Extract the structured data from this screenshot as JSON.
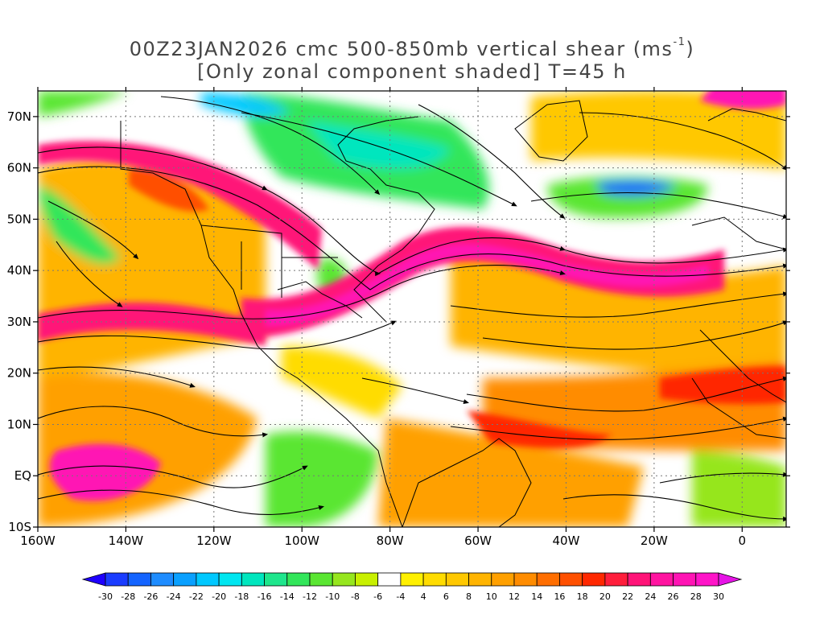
{
  "title": {
    "line1_prefix": "00Z23JAN2026 cmc 500-850mb vertical shear (ms",
    "line1_sup": "-1",
    "line1_suffix": ")",
    "line2": "[Only zonal component shaded] T=45 h"
  },
  "map": {
    "projection": "lat-lon",
    "lon_range": [
      -160,
      10
    ],
    "lat_range": [
      -10,
      75
    ],
    "x_ticks": [
      "160W",
      "140W",
      "120W",
      "100W",
      "80W",
      "60W",
      "40W",
      "20W",
      "0"
    ],
    "y_ticks": [
      "70N",
      "60N",
      "50N",
      "40N",
      "30N",
      "20N",
      "10N",
      "EQ",
      "10S"
    ],
    "grid": "dotted",
    "overlay": "streamlines of shear vector",
    "shading": "zonal component of 500-850mb vertical shear"
  },
  "colorbar": {
    "labels": [
      "-30",
      "-28",
      "-26",
      "-24",
      "-22",
      "-20",
      "-18",
      "-16",
      "-14",
      "-12",
      "-10",
      "-8",
      "-6",
      "-4",
      "4",
      "6",
      "8",
      "10",
      "12",
      "14",
      "16",
      "18",
      "20",
      "22",
      "24",
      "26",
      "28",
      "30"
    ],
    "colors": [
      "#1e00ff",
      "#1a3cff",
      "#1464ff",
      "#1e8cff",
      "#0aa0ff",
      "#00c8ff",
      "#00e6f0",
      "#00e6be",
      "#1ee68c",
      "#32e65a",
      "#5ae632",
      "#96e61e",
      "#c8f000",
      "#ffffff",
      "#fff000",
      "#ffdc00",
      "#ffc800",
      "#ffb400",
      "#ffa000",
      "#ff8c00",
      "#ff6e00",
      "#ff5000",
      "#ff2800",
      "#ff1e3c",
      "#ff1478",
      "#ff14a0",
      "#ff14b4",
      "#ff14c8",
      "#e614e6"
    ]
  }
}
